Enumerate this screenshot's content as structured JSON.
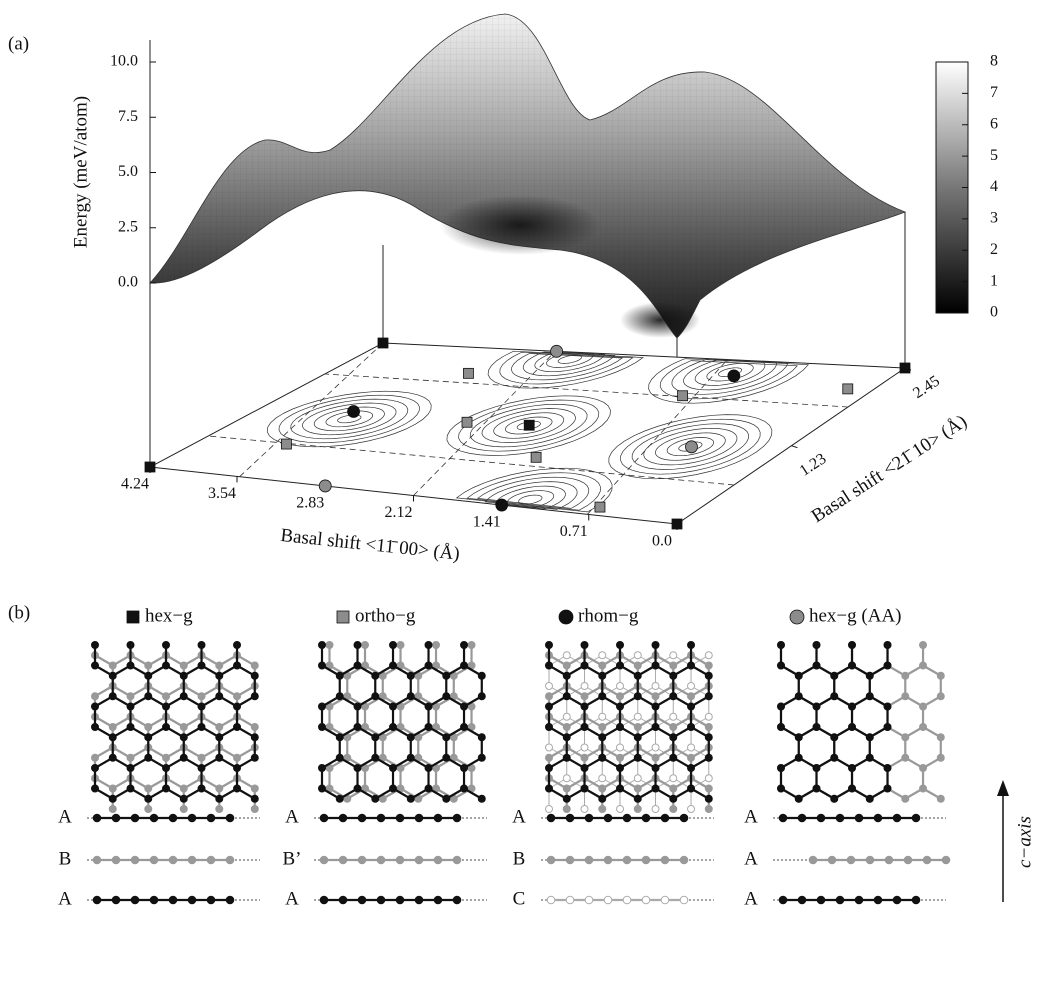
{
  "panel_a": {
    "label": "(a)",
    "z_label": "Energy (meV/atom)",
    "zlim": [
      0,
      10
    ],
    "zticks": [
      {
        "value": 0,
        "label": "0.0"
      },
      2.5,
      {
        "value": 5,
        "label": "5.0"
      },
      7.5,
      {
        "value": 10,
        "label": "10.0"
      }
    ],
    "x_label": "Basal shift <11̄ 00> (Å)",
    "xlim": [
      0,
      4.24
    ],
    "xticks": [
      4.24,
      3.54,
      2.83,
      2.12,
      1.41,
      0.71,
      {
        "value": 0,
        "label": "0.0"
      }
    ],
    "y_label": "Basal shift <21̄ 10> (Å)",
    "ylim": [
      0,
      2.45
    ],
    "yticks": [
      1.23,
      2.45
    ],
    "colorbar": {
      "lim": [
        0,
        8
      ],
      "ticks": [
        0,
        1,
        2,
        3,
        4,
        5,
        6,
        7,
        8
      ]
    }
  },
  "panel_b": {
    "label": "(b)",
    "axis_label": "c−axis"
  },
  "stackings": [
    {
      "name": "hex−g",
      "marker": "square",
      "color": "#111111",
      "points": [
        {
          "x": 4.24,
          "y": 0
        },
        {
          "x": 0,
          "y": 0
        },
        {
          "x": 0,
          "y": 2.45
        },
        {
          "x": 4.24,
          "y": 2.45
        },
        {
          "x": 2.12,
          "y": 1.23
        }
      ],
      "layers": [
        "A",
        "B",
        "A"
      ]
    },
    {
      "name": "ortho−g",
      "marker": "square",
      "color": "#8c8c8c",
      "points": [
        {
          "x": 3.6,
          "y": 0.6
        },
        {
          "x": 3.2,
          "y": 2.0
        },
        {
          "x": 2.6,
          "y": 1.2
        },
        {
          "x": 1.7,
          "y": 0.75
        },
        {
          "x": 1.35,
          "y": 1.85
        },
        {
          "x": 0.2,
          "y": 2.1
        },
        {
          "x": 0.71,
          "y": 0.12
        }
      ],
      "layers": [
        "A",
        "B’",
        "A"
      ]
    },
    {
      "name": "rhom−g",
      "marker": "circle",
      "color": "#111111",
      "points": [
        {
          "x": 3.54,
          "y": 1.23
        },
        {
          "x": 1.41,
          "y": 0
        },
        {
          "x": 1.2,
          "y": 2.2
        }
      ],
      "layers": [
        "A",
        "B",
        "C"
      ]
    },
    {
      "name": "hex−g (AA)",
      "marker": "circle",
      "color": "#8c8c8c",
      "points": [
        {
          "x": 2.83,
          "y": 0
        },
        {
          "x": 2.83,
          "y": 2.45
        },
        {
          "x": 0.71,
          "y": 1.1
        }
      ],
      "layers": [
        "A",
        "A",
        "A"
      ]
    }
  ]
}
